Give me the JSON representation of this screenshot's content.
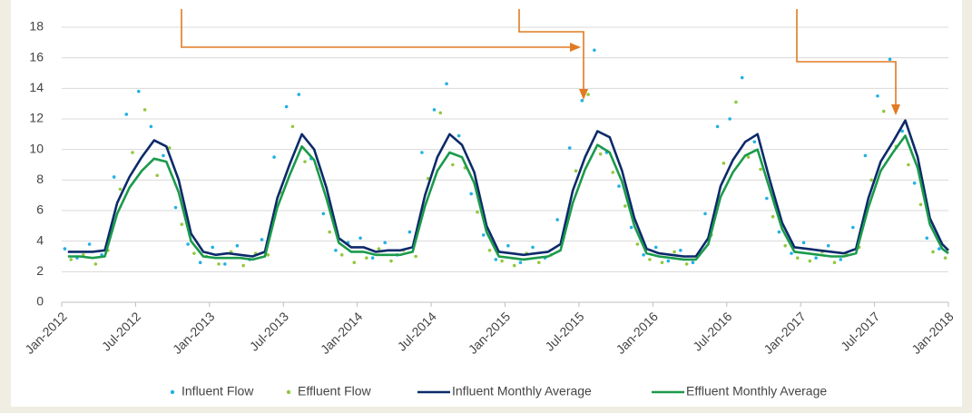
{
  "chart_data": {
    "type": "line",
    "xlim": [
      0,
      72
    ],
    "xticks": [
      {
        "value": 0,
        "label": "Jan-2012"
      },
      {
        "value": 6,
        "label": "Jul-2012"
      },
      {
        "value": 12,
        "label": "Jan-2013"
      },
      {
        "value": 18,
        "label": "Jul-2013"
      },
      {
        "value": 24,
        "label": "Jan-2014"
      },
      {
        "value": 30,
        "label": "Jul-2014"
      },
      {
        "value": 36,
        "label": "Jan-2015"
      },
      {
        "value": 42,
        "label": "Jul-2015"
      },
      {
        "value": 48,
        "label": "Jan-2016"
      },
      {
        "value": 54,
        "label": "Jul-2016"
      },
      {
        "value": 60,
        "label": "Jan-2017"
      },
      {
        "value": 66,
        "label": "Jul-2017"
      },
      {
        "value": 72,
        "label": "Jan-2018"
      }
    ],
    "ylim": [
      0,
      18
    ],
    "yticks": [
      0,
      2,
      4,
      6,
      8,
      10,
      12,
      14,
      16,
      18
    ],
    "grid": true,
    "legend": "bottom",
    "series": [
      {
        "name": "Influent Flow",
        "type": "scatter",
        "color": "#22b1e3",
        "x": [
          0.25,
          1.25,
          2.25,
          3.25,
          4.25,
          5.25,
          6.25,
          7.25,
          8.25,
          9.25,
          10.25,
          11.25,
          12.25,
          13.25,
          14.25,
          15.25,
          16.25,
          17.25,
          18.25,
          19.25,
          20.25,
          21.25,
          22.25,
          23.25,
          24.25,
          25.25,
          26.25,
          27.25,
          28.25,
          29.25,
          30.25,
          31.25,
          32.25,
          33.25,
          34.25,
          35.25,
          36.25,
          37.25,
          38.25,
          39.25,
          40.25,
          41.25,
          42.25,
          43.25,
          44.25,
          45.25,
          46.25,
          47.25,
          48.25,
          49.25,
          50.25,
          51.25,
          52.25,
          53.25,
          54.25,
          55.25,
          56.25,
          57.25,
          58.25,
          59.25,
          60.25,
          61.25,
          62.25,
          63.25,
          64.25,
          65.25,
          66.25,
          67.25,
          68.25,
          69.25,
          70.25,
          71.25
        ],
        "values": [
          3.5,
          2.9,
          3.8,
          3.1,
          8.2,
          12.3,
          13.8,
          11.5,
          9.6,
          6.2,
          3.8,
          2.6,
          3.6,
          2.5,
          3.7,
          2.8,
          4.1,
          9.5,
          12.8,
          13.6,
          9.4,
          5.8,
          3.4,
          3.9,
          4.2,
          2.9,
          3.9,
          3.1,
          4.6,
          9.8,
          12.6,
          14.3,
          10.9,
          7.1,
          4.4,
          2.8,
          3.7,
          2.6,
          3.6,
          2.9,
          5.4,
          10.1,
          13.2,
          16.5,
          9.8,
          7.6,
          4.9,
          3.1,
          3.6,
          2.7,
          3.4,
          2.6,
          5.8,
          11.5,
          12.0,
          14.7,
          10.5,
          6.8,
          4.6,
          3.2,
          3.9,
          2.9,
          3.7,
          2.8,
          4.9,
          9.6,
          13.5,
          15.9,
          11.2,
          7.8,
          4.2,
          3.5
        ]
      },
      {
        "name": "Effluent Flow",
        "type": "scatter",
        "color": "#93c83f",
        "x": [
          0.75,
          1.75,
          2.75,
          3.75,
          4.75,
          5.75,
          6.75,
          7.75,
          8.75,
          9.75,
          10.75,
          11.75,
          12.75,
          13.75,
          14.75,
          15.75,
          16.75,
          17.75,
          18.75,
          19.75,
          20.75,
          21.75,
          22.75,
          23.75,
          24.75,
          25.75,
          26.75,
          27.75,
          28.75,
          29.75,
          30.75,
          31.75,
          32.75,
          33.75,
          34.75,
          35.75,
          36.75,
          37.75,
          38.75,
          39.75,
          40.75,
          41.75,
          42.75,
          43.75,
          44.75,
          45.75,
          46.75,
          47.75,
          48.75,
          49.75,
          50.75,
          51.75,
          52.75,
          53.75,
          54.75,
          55.75,
          56.75,
          57.75,
          58.75,
          59.75,
          60.75,
          61.75,
          62.75,
          63.75,
          64.75,
          65.75,
          66.75,
          67.75,
          68.75,
          69.75,
          70.75,
          71.75
        ],
        "values": [
          2.8,
          3.1,
          2.5,
          3.4,
          7.4,
          9.8,
          12.6,
          8.3,
          10.1,
          5.1,
          3.2,
          3.0,
          2.5,
          3.3,
          2.4,
          3.2,
          3.1,
          7.2,
          11.5,
          9.2,
          8.7,
          4.6,
          3.1,
          2.6,
          2.9,
          3.5,
          2.7,
          3.4,
          3.0,
          8.1,
          12.4,
          9.0,
          8.8,
          5.9,
          3.4,
          2.7,
          2.4,
          3.2,
          2.6,
          3.1,
          4.2,
          8.6,
          13.6,
          9.7,
          8.5,
          6.3,
          3.8,
          2.8,
          2.6,
          3.3,
          2.5,
          3.2,
          4.4,
          9.1,
          13.1,
          9.5,
          8.7,
          5.6,
          3.7,
          2.9,
          2.7,
          3.3,
          2.6,
          3.1,
          3.6,
          8.0,
          12.5,
          10.2,
          9.0,
          6.4,
          3.3,
          2.9
        ]
      },
      {
        "name": "Influent Monthly Average",
        "type": "line",
        "color": "#0c2a6a",
        "x": [
          0.5,
          1.5,
          2.5,
          3.5,
          4.5,
          5.5,
          6.5,
          7.5,
          8.5,
          9.5,
          10.5,
          11.5,
          12.5,
          13.5,
          14.5,
          15.5,
          16.5,
          17.5,
          18.5,
          19.5,
          20.5,
          21.5,
          22.5,
          23.5,
          24.5,
          25.5,
          26.5,
          27.5,
          28.5,
          29.5,
          30.5,
          31.5,
          32.5,
          33.5,
          34.5,
          35.5,
          36.5,
          37.5,
          38.5,
          39.5,
          40.5,
          41.5,
          42.5,
          43.5,
          44.5,
          45.5,
          46.5,
          47.5,
          48.5,
          49.5,
          50.5,
          51.5,
          52.5,
          53.5,
          54.5,
          55.5,
          56.5,
          57.5,
          58.5,
          59.5,
          60.5,
          61.5,
          62.5,
          63.5,
          64.5,
          65.5,
          66.5,
          67.5,
          68.5,
          69.5,
          70.5,
          71.5,
          72
        ],
        "values": [
          3.3,
          3.3,
          3.3,
          3.4,
          6.5,
          8.2,
          9.5,
          10.6,
          10.2,
          8.0,
          4.5,
          3.3,
          3.1,
          3.2,
          3.1,
          3.0,
          3.3,
          6.8,
          9.0,
          11.0,
          10.0,
          7.5,
          4.2,
          3.6,
          3.6,
          3.3,
          3.4,
          3.4,
          3.6,
          7.0,
          9.5,
          11.0,
          10.3,
          8.5,
          5.0,
          3.3,
          3.2,
          3.1,
          3.2,
          3.3,
          3.8,
          7.3,
          9.5,
          11.2,
          10.8,
          8.6,
          5.5,
          3.5,
          3.2,
          3.1,
          3.0,
          3.0,
          4.2,
          7.6,
          9.3,
          10.5,
          11.0,
          8.0,
          5.2,
          3.6,
          3.5,
          3.4,
          3.3,
          3.2,
          3.5,
          6.8,
          9.2,
          10.5,
          11.9,
          9.5,
          5.5,
          3.8,
          3.4
        ]
      },
      {
        "name": "Effluent Monthly Average",
        "type": "line",
        "color": "#1b9a4b",
        "x": [
          0.5,
          1.5,
          2.5,
          3.5,
          4.5,
          5.5,
          6.5,
          7.5,
          8.5,
          9.5,
          10.5,
          11.5,
          12.5,
          13.5,
          14.5,
          15.5,
          16.5,
          17.5,
          18.5,
          19.5,
          20.5,
          21.5,
          22.5,
          23.5,
          24.5,
          25.5,
          26.5,
          27.5,
          28.5,
          29.5,
          30.5,
          31.5,
          32.5,
          33.5,
          34.5,
          35.5,
          36.5,
          37.5,
          38.5,
          39.5,
          40.5,
          41.5,
          42.5,
          43.5,
          44.5,
          45.5,
          46.5,
          47.5,
          48.5,
          49.5,
          50.5,
          51.5,
          52.5,
          53.5,
          54.5,
          55.5,
          56.5,
          57.5,
          58.5,
          59.5,
          60.5,
          61.5,
          62.5,
          63.5,
          64.5,
          65.5,
          66.5,
          67.5,
          68.5,
          69.5,
          70.5,
          71.5,
          72
        ],
        "values": [
          3.0,
          3.0,
          2.9,
          3.0,
          5.8,
          7.5,
          8.6,
          9.4,
          9.2,
          7.2,
          4.0,
          3.0,
          2.9,
          2.9,
          2.9,
          2.8,
          3.0,
          6.2,
          8.3,
          10.2,
          9.3,
          6.8,
          3.9,
          3.3,
          3.3,
          3.1,
          3.1,
          3.1,
          3.3,
          6.3,
          8.6,
          9.8,
          9.5,
          7.8,
          4.6,
          3.0,
          2.9,
          2.8,
          2.9,
          3.0,
          3.4,
          6.5,
          8.7,
          10.3,
          9.8,
          7.9,
          5.0,
          3.2,
          3.0,
          2.9,
          2.8,
          2.8,
          3.8,
          6.9,
          8.5,
          9.6,
          10.0,
          7.4,
          4.8,
          3.3,
          3.2,
          3.1,
          3.0,
          3.0,
          3.2,
          6.2,
          8.6,
          9.8,
          10.9,
          8.8,
          5.1,
          3.5,
          3.2
        ]
      }
    ]
  }
}
